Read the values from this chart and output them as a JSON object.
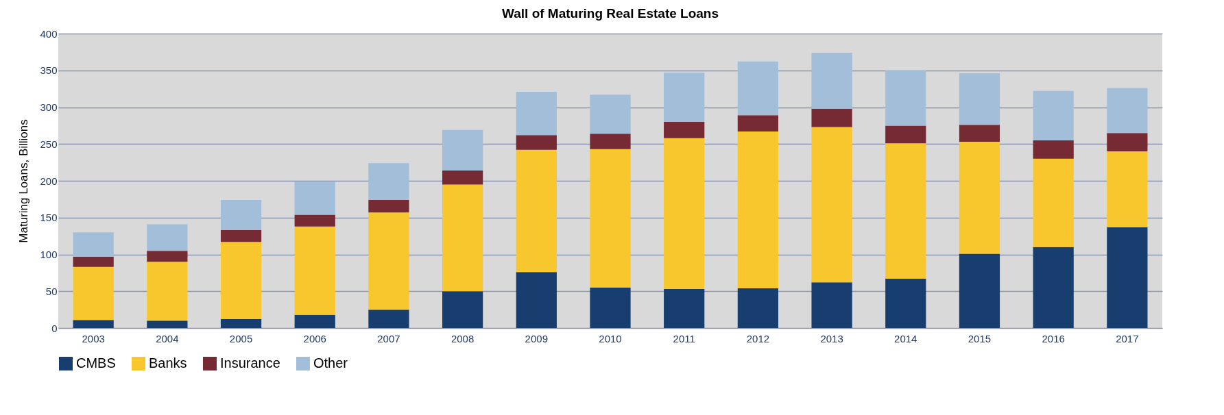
{
  "chart_data": {
    "type": "bar",
    "title": "Wall of Maturing Real Estate Loans",
    "ylabel": "Maturing Loans, Billions",
    "categories": [
      "2003",
      "2004",
      "2005",
      "2006",
      "2007",
      "2008",
      "2009",
      "2010",
      "2011",
      "2012",
      "2013",
      "2014",
      "2015",
      "2016",
      "2017"
    ],
    "series": [
      {
        "name": "CMBS",
        "color": "#173e6f",
        "values": [
          11,
          10,
          12,
          18,
          25,
          50,
          76,
          55,
          53,
          54,
          62,
          67,
          101,
          110,
          137
        ]
      },
      {
        "name": "Banks",
        "color": "#f8c72e",
        "values": [
          72,
          80,
          105,
          120,
          132,
          145,
          166,
          188,
          205,
          213,
          211,
          184,
          152,
          120,
          103
        ]
      },
      {
        "name": "Insurance",
        "color": "#762a34",
        "values": [
          14,
          15,
          16,
          16,
          17,
          19,
          20,
          21,
          22,
          22,
          25,
          24,
          23,
          25,
          25
        ]
      },
      {
        "name": "Other",
        "color": "#a3bed9",
        "values": [
          33,
          36,
          41,
          45,
          50,
          55,
          59,
          53,
          67,
          73,
          76,
          75,
          70,
          67,
          61
        ]
      }
    ],
    "stacked": true,
    "ylim": [
      0,
      400
    ],
    "yticks": [
      0,
      50,
      100,
      150,
      200,
      250,
      300,
      350,
      400
    ],
    "grid": "y",
    "legend": "bottom"
  }
}
